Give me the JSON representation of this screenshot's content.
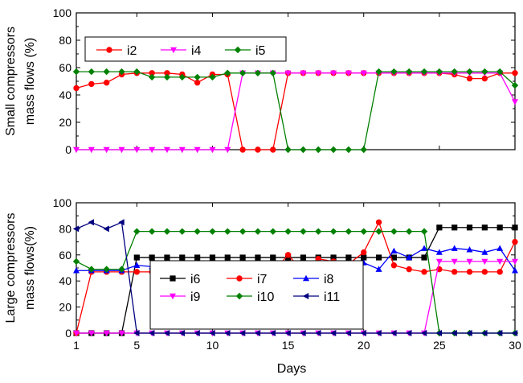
{
  "chart_data": [
    {
      "type": "line",
      "ylabel_lines": [
        "Small compressors",
        "mass  flows (%)"
      ],
      "xlim": [
        1,
        30
      ],
      "ylim": [
        0,
        100
      ],
      "yticks": [
        0,
        20,
        40,
        60,
        80,
        100
      ],
      "xticks": [
        1,
        5,
        10,
        15,
        20,
        25,
        30
      ],
      "x": [
        1,
        2,
        3,
        4,
        5,
        6,
        7,
        8,
        9,
        10,
        11,
        12,
        13,
        14,
        15,
        16,
        17,
        18,
        19,
        20,
        21,
        22,
        23,
        24,
        25,
        26,
        27,
        28,
        29,
        30
      ],
      "legend_position": "upper-left",
      "series": [
        {
          "name": "i2",
          "color": "#ff0000",
          "marker": "circle",
          "values": [
            45,
            48,
            49,
            55,
            56,
            56,
            56,
            55,
            49,
            55,
            55,
            0,
            0,
            0,
            56,
            56,
            56,
            56,
            56,
            56,
            56,
            56,
            56,
            56,
            56,
            55,
            52,
            52,
            56,
            56
          ]
        },
        {
          "name": "i4",
          "color": "#ff00ff",
          "marker": "triangle-down",
          "values": [
            0,
            0,
            0,
            0,
            0,
            0,
            0,
            0,
            0,
            0,
            0,
            56,
            56,
            56,
            56,
            56,
            56,
            56,
            56,
            56,
            56,
            56,
            56,
            56,
            56,
            56,
            56,
            56,
            56,
            35
          ]
        },
        {
          "name": "i5",
          "color": "#008000",
          "marker": "diamond",
          "values": [
            57,
            57,
            57,
            57,
            57,
            53,
            53,
            53,
            53,
            53,
            56,
            56,
            56,
            56,
            0,
            0,
            0,
            0,
            0,
            0,
            57,
            57,
            57,
            57,
            57,
            57,
            57,
            57,
            57,
            47
          ]
        }
      ]
    },
    {
      "type": "line",
      "xlabel": "Days",
      "ylabel_lines": [
        "Large compressors",
        "mass flows(%)"
      ],
      "xlim": [
        1,
        30
      ],
      "ylim": [
        0,
        100
      ],
      "yticks": [
        0,
        20,
        40,
        60,
        80,
        100
      ],
      "xticks": [
        1,
        5,
        10,
        15,
        20,
        25,
        30
      ],
      "x": [
        1,
        2,
        3,
        4,
        5,
        6,
        7,
        8,
        9,
        10,
        11,
        12,
        13,
        14,
        15,
        16,
        17,
        18,
        19,
        20,
        21,
        22,
        23,
        24,
        25,
        26,
        27,
        28,
        29,
        30
      ],
      "legend_position": "lower-center",
      "series": [
        {
          "name": "i6",
          "color": "#000000",
          "marker": "square",
          "values": [
            0,
            0,
            0,
            0,
            58,
            58,
            58,
            58,
            58,
            58,
            58,
            58,
            58,
            58,
            58,
            58,
            58,
            58,
            58,
            58,
            58,
            58,
            58,
            58,
            81,
            81,
            81,
            81,
            81,
            81
          ]
        },
        {
          "name": "i7",
          "color": "#ff0000",
          "marker": "circle",
          "values": [
            0,
            47,
            47,
            47,
            47,
            47,
            47,
            47,
            47,
            47,
            47,
            47,
            47,
            47,
            60,
            47,
            57,
            55,
            53,
            62,
            85,
            52,
            49,
            47,
            49,
            47,
            47,
            47,
            47,
            70
          ]
        },
        {
          "name": "i8",
          "color": "#0000ff",
          "marker": "triangle-up",
          "values": [
            48,
            48,
            48,
            48,
            52,
            51,
            48,
            48,
            48,
            48,
            48,
            48,
            50,
            48,
            50,
            52,
            52,
            52,
            52,
            54,
            49,
            63,
            58,
            65,
            62,
            65,
            64,
            62,
            65,
            48
          ]
        },
        {
          "name": "i9",
          "color": "#ff00ff",
          "marker": "triangle-down",
          "values": [
            0,
            0,
            0,
            0,
            0,
            0,
            0,
            0,
            0,
            0,
            0,
            0,
            0,
            0,
            0,
            0,
            0,
            0,
            0,
            0,
            0,
            0,
            0,
            0,
            55,
            55,
            55,
            55,
            55,
            55
          ]
        },
        {
          "name": "i10",
          "color": "#008000",
          "marker": "diamond",
          "values": [
            55,
            49,
            49,
            49,
            78,
            78,
            78,
            78,
            78,
            78,
            78,
            78,
            78,
            78,
            78,
            78,
            78,
            78,
            78,
            78,
            78,
            78,
            78,
            78,
            0,
            0,
            0,
            0,
            0,
            0
          ]
        },
        {
          "name": "i11",
          "color": "#000080",
          "marker": "triangle-left",
          "values": [
            80,
            85,
            80,
            85,
            0,
            0,
            0,
            0,
            0,
            0,
            0,
            0,
            0,
            0,
            0,
            0,
            0,
            0,
            0,
            0,
            0,
            0,
            0,
            0,
            0,
            0,
            0,
            0,
            0,
            0
          ]
        }
      ]
    }
  ]
}
